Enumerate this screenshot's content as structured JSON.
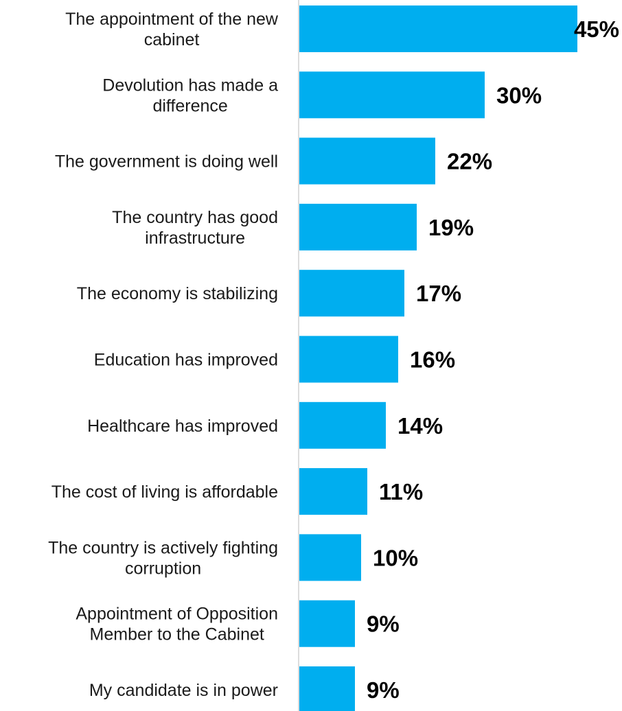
{
  "chart_data": {
    "type": "bar",
    "orientation": "horizontal",
    "title": "",
    "xlabel": "",
    "ylabel": "",
    "categories": [
      "The appointment of the new cabinet",
      "Devolution has made a difference",
      "The government is doing well",
      "The country has good infrastructure",
      "The economy is stabilizing",
      "Education has improved",
      "Healthcare has improved",
      "The cost of living is affordable",
      "The country is actively fighting corruption",
      "Appointment of Opposition Member to the Cabinet",
      "My candidate is in power"
    ],
    "category_lines": [
      [
        "The appointment of the new",
        "cabinet"
      ],
      [
        "Devolution has made a",
        "difference"
      ],
      [
        "The government is doing well"
      ],
      [
        "The country has good",
        "infrastructure"
      ],
      [
        "The economy is stabilizing"
      ],
      [
        "Education has improved"
      ],
      [
        "Healthcare has improved"
      ],
      [
        "The cost of living is affordable"
      ],
      [
        "The country is actively fighting",
        "corruption"
      ],
      [
        "Appointment of Opposition",
        "Member to the Cabinet"
      ],
      [
        "My candidate is in power"
      ]
    ],
    "values": [
      45,
      30,
      22,
      19,
      17,
      16,
      14,
      11,
      10,
      9,
      9
    ],
    "value_labels": [
      "45%",
      "30%",
      "22%",
      "19%",
      "17%",
      "16%",
      "14%",
      "11%",
      "10%",
      "9%",
      "9%"
    ],
    "unit": "%",
    "bar_color": "#00AEEF",
    "axis_color": "#D0D0D0",
    "xlim": [
      0,
      50
    ],
    "grid": false,
    "legend": "none"
  }
}
